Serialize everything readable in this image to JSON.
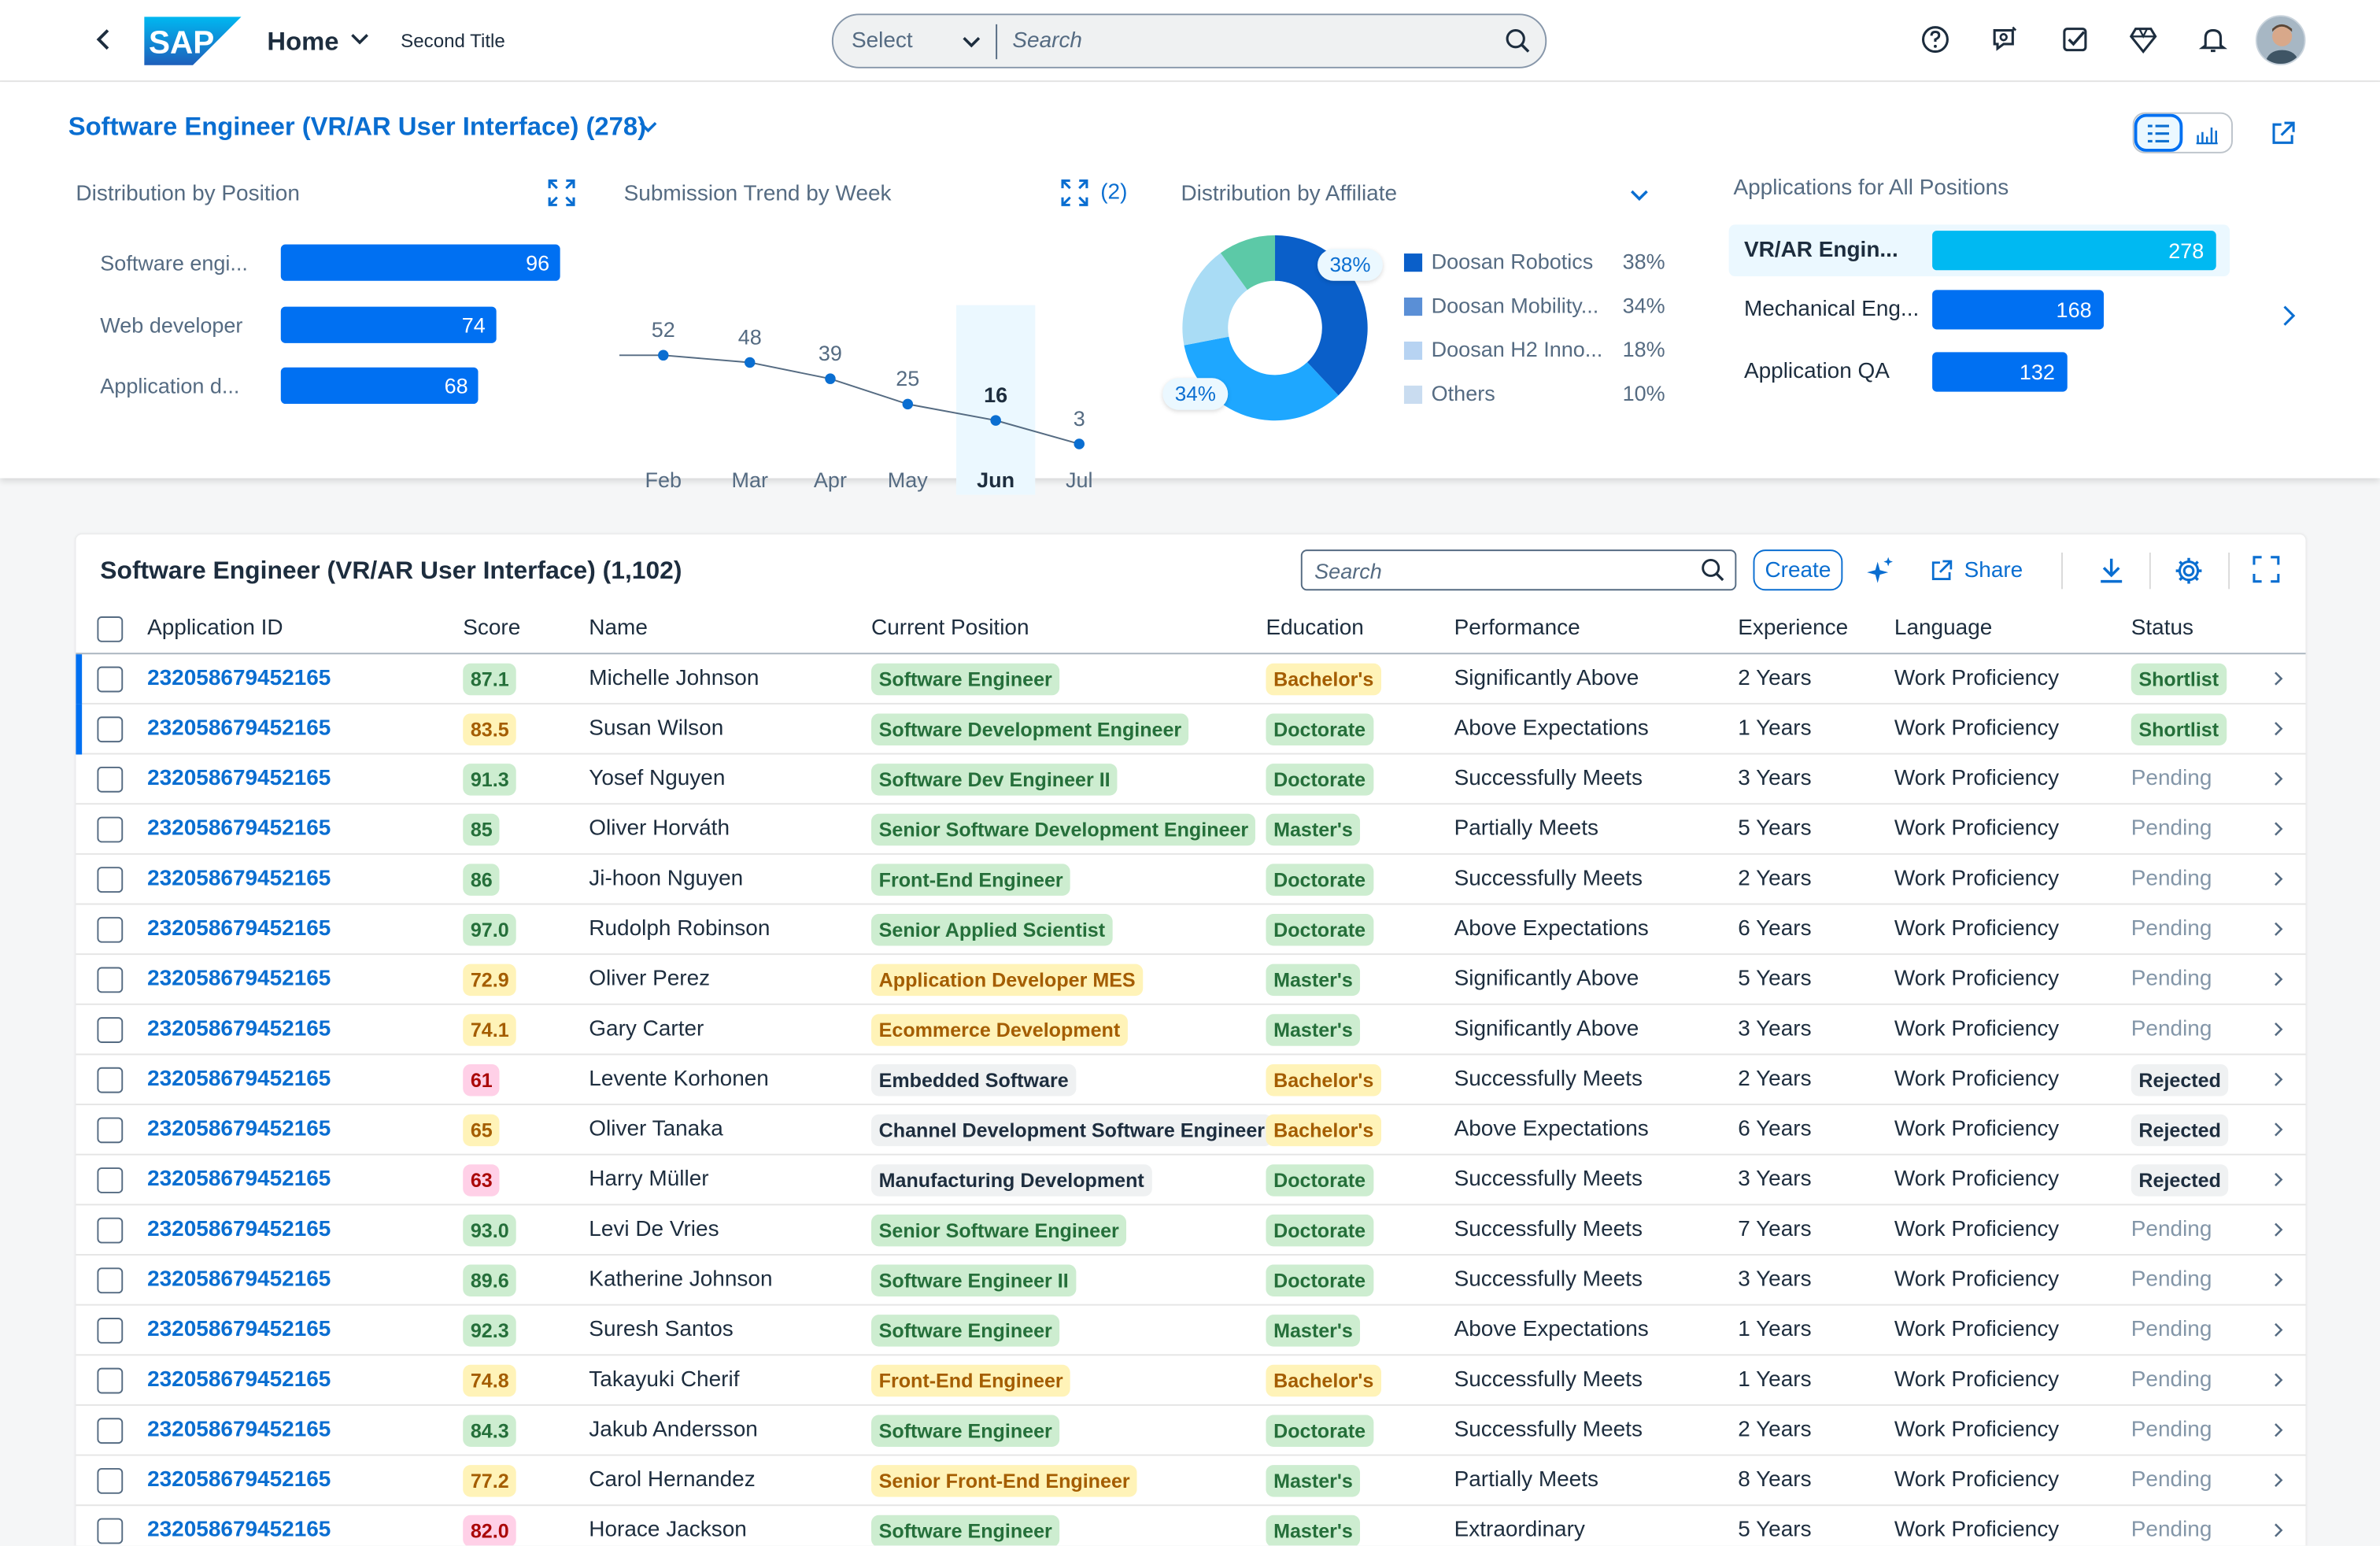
{
  "shell": {
    "logo": "SAP",
    "home_label": "Home",
    "second_title": "Second Title",
    "search_select": "Select",
    "search_placeholder": "Search"
  },
  "header": {
    "title": "Software Engineer (VR/AR User Interface) (278)"
  },
  "position_chart": {
    "title": "Distribution by Position",
    "items": [
      {
        "label": "Software engi...",
        "value": 96
      },
      {
        "label": "Web developer",
        "value": 74
      },
      {
        "label": "Application d...",
        "value": 68
      }
    ]
  },
  "trend_chart": {
    "title": "Submission Trend by Week",
    "count": "(2)"
  },
  "affiliate_chart": {
    "title": "Distribution by Affiliate",
    "callout_top": "38%",
    "callout_left": "34%",
    "legend": [
      {
        "name": "Doosan Robotics",
        "value": "38%",
        "color": "#0a5fc9"
      },
      {
        "name": "Doosan Mobility...",
        "value": "34%",
        "color": "#5a8fd6"
      },
      {
        "name": "Doosan H2 Inno...",
        "value": "18%",
        "color": "#b7d3f2"
      },
      {
        "name": "Others",
        "value": "10%",
        "color": "#c9dcf0"
      }
    ]
  },
  "applications_chart": {
    "title": "Applications for All Positions",
    "items": [
      {
        "label": "VR/AR Engin...",
        "value": 278
      },
      {
        "label": "Mechanical Eng...",
        "value": 168
      },
      {
        "label": "Application QA",
        "value": 132
      }
    ]
  },
  "chart_data": [
    {
      "type": "bar",
      "title": "Distribution by Position",
      "categories": [
        "Software engi...",
        "Web developer",
        "Application d..."
      ],
      "values": [
        96,
        74,
        68
      ]
    },
    {
      "type": "line",
      "title": "Submission Trend by Week",
      "categories": [
        "Feb",
        "Mar",
        "Apr",
        "May",
        "Jun",
        "Jul"
      ],
      "values": [
        52,
        48,
        39,
        25,
        16,
        3
      ],
      "highlighted": "Jun"
    },
    {
      "type": "pie",
      "title": "Distribution by Affiliate",
      "categories": [
        "Doosan Robotics",
        "Doosan Mobility...",
        "Doosan H2 Inno...",
        "Others"
      ],
      "values": [
        38,
        34,
        18,
        10
      ]
    },
    {
      "type": "bar",
      "title": "Applications for All Positions",
      "categories": [
        "VR/AR Engin...",
        "Mechanical Eng...",
        "Application QA"
      ],
      "values": [
        278,
        168,
        132
      ]
    }
  ],
  "table": {
    "title": "Software Engineer (VR/AR User Interface) (1,102)",
    "search_placeholder": "Search",
    "create_label": "Create",
    "share_label": "Share",
    "columns": [
      "Application ID",
      "Score",
      "Name",
      "Current Position",
      "Education",
      "Performance",
      "Experience",
      "Language",
      "Status"
    ],
    "rows": [
      {
        "id": "232058679452165",
        "score": "87.1",
        "score_c": "g",
        "name": "Michelle Johnson",
        "pos": "Software Engineer",
        "pos_c": "g",
        "edu": "Bachelor's",
        "edu_c": "y",
        "perf": "Significantly Above",
        "exp": "2 Years",
        "lang": "Work Proficiency",
        "status": "Shortlist",
        "st": "g",
        "mark": true
      },
      {
        "id": "232058679452165",
        "score": "83.5",
        "score_c": "y",
        "name": "Susan Wilson",
        "pos": "Software Development Engineer",
        "pos_c": "g",
        "edu": "Doctorate",
        "edu_c": "g",
        "perf": "Above Expectations",
        "exp": "1 Years",
        "lang": "Work Proficiency",
        "status": "Shortlist",
        "st": "g",
        "mark": true
      },
      {
        "id": "232058679452165",
        "score": "91.3",
        "score_c": "g",
        "name": "Yosef Nguyen",
        "pos": "Software Dev Engineer II",
        "pos_c": "g",
        "edu": "Doctorate",
        "edu_c": "g",
        "perf": "Successfully Meets",
        "exp": "3 Years",
        "lang": "Work Proficiency",
        "status": "Pending",
        "st": "p"
      },
      {
        "id": "232058679452165",
        "score": "85",
        "score_c": "g",
        "name": "Oliver Horváth",
        "pos": "Senior Software Development Engineer",
        "pos_c": "g",
        "edu": "Master's",
        "edu_c": "g",
        "perf": "Partially Meets",
        "exp": "5 Years",
        "lang": "Work Proficiency",
        "status": "Pending",
        "st": "p"
      },
      {
        "id": "232058679452165",
        "score": "86",
        "score_c": "g",
        "name": "Ji-hoon Nguyen",
        "pos": "Front-End Engineer",
        "pos_c": "g",
        "edu": "Doctorate",
        "edu_c": "g",
        "perf": "Successfully Meets",
        "exp": "2 Years",
        "lang": "Work Proficiency",
        "status": "Pending",
        "st": "p"
      },
      {
        "id": "232058679452165",
        "score": "97.0",
        "score_c": "g",
        "name": "Rudolph Robinson",
        "pos": "Senior Applied Scientist",
        "pos_c": "g",
        "edu": "Doctorate",
        "edu_c": "g",
        "perf": "Above Expectations",
        "exp": "6 Years",
        "lang": "Work Proficiency",
        "status": "Pending",
        "st": "p"
      },
      {
        "id": "232058679452165",
        "score": "72.9",
        "score_c": "y",
        "name": "Oliver Perez",
        "pos": "Application Developer MES",
        "pos_c": "y",
        "edu": "Master's",
        "edu_c": "g",
        "perf": "Significantly Above",
        "exp": "5 Years",
        "lang": "Work Proficiency",
        "status": "Pending",
        "st": "p"
      },
      {
        "id": "232058679452165",
        "score": "74.1",
        "score_c": "y",
        "name": "Gary Carter",
        "pos": "Ecommerce Development",
        "pos_c": "y",
        "edu": "Master's",
        "edu_c": "g",
        "perf": "Significantly Above",
        "exp": "3 Years",
        "lang": "Work Proficiency",
        "status": "Pending",
        "st": "p"
      },
      {
        "id": "232058679452165",
        "score": "61",
        "score_c": "r",
        "name": "Levente Korhonen",
        "pos": "Embedded Software",
        "pos_c": "n",
        "edu": "Bachelor's",
        "edu_c": "y",
        "perf": "Successfully Meets",
        "exp": "2 Years",
        "lang": "Work Proficiency",
        "status": "Rejected",
        "st": "n"
      },
      {
        "id": "232058679452165",
        "score": "65",
        "score_c": "y",
        "name": "Oliver Tanaka",
        "pos": "Channel Development Software Engineer",
        "pos_c": "n",
        "edu": "Bachelor's",
        "edu_c": "y",
        "perf": "Above Expectations",
        "exp": "6 Years",
        "lang": "Work Proficiency",
        "status": "Rejected",
        "st": "n"
      },
      {
        "id": "232058679452165",
        "score": "63",
        "score_c": "r",
        "name": "Harry Müller",
        "pos": "Manufacturing Development",
        "pos_c": "n",
        "edu": "Doctorate",
        "edu_c": "g",
        "perf": "Successfully Meets",
        "exp": "3 Years",
        "lang": "Work Proficiency",
        "status": "Rejected",
        "st": "n"
      },
      {
        "id": "232058679452165",
        "score": "93.0",
        "score_c": "g",
        "name": "Levi De Vries",
        "pos": "Senior Software Engineer",
        "pos_c": "g",
        "edu": "Doctorate",
        "edu_c": "g",
        "perf": "Successfully Meets",
        "exp": "7 Years",
        "lang": "Work Proficiency",
        "status": "Pending",
        "st": "p"
      },
      {
        "id": "232058679452165",
        "score": "89.6",
        "score_c": "g",
        "name": "Katherine Johnson",
        "pos": "Software Engineer II",
        "pos_c": "g",
        "edu": "Doctorate",
        "edu_c": "g",
        "perf": "Successfully Meets",
        "exp": "3 Years",
        "lang": "Work Proficiency",
        "status": "Pending",
        "st": "p"
      },
      {
        "id": "232058679452165",
        "score": "92.3",
        "score_c": "g",
        "name": "Suresh Santos",
        "pos": "Software Engineer",
        "pos_c": "g",
        "edu": "Master's",
        "edu_c": "g",
        "perf": "Above Expectations",
        "exp": "1 Years",
        "lang": "Work Proficiency",
        "status": "Pending",
        "st": "p"
      },
      {
        "id": "232058679452165",
        "score": "74.8",
        "score_c": "y",
        "name": "Takayuki Cherif",
        "pos": "Front-End Engineer",
        "pos_c": "y",
        "edu": "Bachelor's",
        "edu_c": "y",
        "perf": "Successfully Meets",
        "exp": "1 Years",
        "lang": "Work Proficiency",
        "status": "Pending",
        "st": "p"
      },
      {
        "id": "232058679452165",
        "score": "84.3",
        "score_c": "g",
        "name": "Jakub Andersson",
        "pos": "Software Engineer",
        "pos_c": "g",
        "edu": "Doctorate",
        "edu_c": "g",
        "perf": "Successfully Meets",
        "exp": "2 Years",
        "lang": "Work Proficiency",
        "status": "Pending",
        "st": "p"
      },
      {
        "id": "232058679452165",
        "score": "77.2",
        "score_c": "y",
        "name": "Carol Hernandez",
        "pos": "Senior Front-End Engineer",
        "pos_c": "y",
        "edu": "Master's",
        "edu_c": "g",
        "perf": "Partially Meets",
        "exp": "8 Years",
        "lang": "Work Proficiency",
        "status": "Pending",
        "st": "p"
      },
      {
        "id": "232058679452165",
        "score": "82.0",
        "score_c": "r",
        "name": "Horace Jackson",
        "pos": "Software Engineer",
        "pos_c": "g",
        "edu": "Master's",
        "edu_c": "g",
        "perf": "Extraordinary",
        "exp": "5 Years",
        "lang": "Work Proficiency",
        "status": "Pending",
        "st": "p"
      }
    ]
  }
}
